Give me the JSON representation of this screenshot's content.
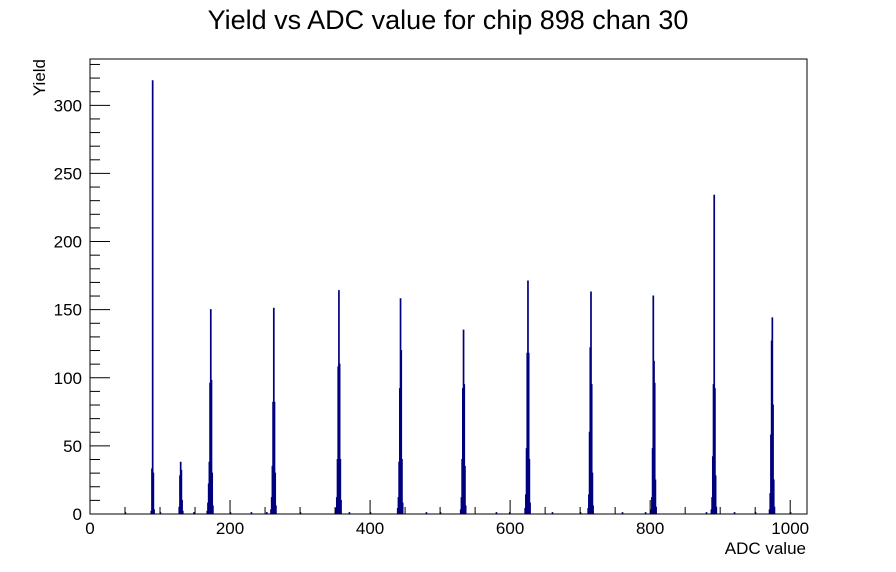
{
  "chart_data": {
    "type": "histogram",
    "title": "Yield vs ADC value for chip 898 chan 30",
    "xlabel": "ADC value",
    "ylabel": "Yield",
    "xlim": [
      0,
      1024
    ],
    "ylim": [
      0,
      334
    ],
    "x_ticks": [
      0,
      200,
      400,
      600,
      800,
      1000
    ],
    "y_ticks": [
      0,
      50,
      100,
      150,
      200,
      250,
      300
    ],
    "grid": false,
    "legend": "none",
    "line_color": "#00007f",
    "bins": [
      [
        50,
        1
      ],
      [
        87,
        2
      ],
      [
        88,
        33
      ],
      [
        89,
        318
      ],
      [
        90,
        30
      ],
      [
        91,
        3
      ],
      [
        100,
        1
      ],
      [
        127,
        5
      ],
      [
        128,
        28
      ],
      [
        129,
        38
      ],
      [
        130,
        32
      ],
      [
        131,
        10
      ],
      [
        132,
        2
      ],
      [
        148,
        1
      ],
      [
        167,
        2
      ],
      [
        168,
        8
      ],
      [
        169,
        22
      ],
      [
        170,
        38
      ],
      [
        171,
        96
      ],
      [
        172,
        150
      ],
      [
        173,
        98
      ],
      [
        174,
        30
      ],
      [
        175,
        6
      ],
      [
        200,
        1
      ],
      [
        230,
        1
      ],
      [
        252,
        1
      ],
      [
        258,
        3
      ],
      [
        259,
        12
      ],
      [
        260,
        35
      ],
      [
        261,
        82
      ],
      [
        262,
        151
      ],
      [
        263,
        82
      ],
      [
        264,
        30
      ],
      [
        265,
        6
      ],
      [
        300,
        1
      ],
      [
        350,
        1
      ],
      [
        351,
        4
      ],
      [
        352,
        12
      ],
      [
        353,
        40
      ],
      [
        354,
        108
      ],
      [
        355,
        164
      ],
      [
        356,
        110
      ],
      [
        357,
        40
      ],
      [
        358,
        10
      ],
      [
        370,
        1
      ],
      [
        400,
        1
      ],
      [
        439,
        4
      ],
      [
        440,
        12
      ],
      [
        441,
        38
      ],
      [
        442,
        92
      ],
      [
        443,
        158
      ],
      [
        444,
        120
      ],
      [
        445,
        40
      ],
      [
        446,
        8
      ],
      [
        480,
        1
      ],
      [
        500,
        1
      ],
      [
        529,
        3
      ],
      [
        530,
        12
      ],
      [
        531,
        40
      ],
      [
        532,
        92
      ],
      [
        533,
        135
      ],
      [
        534,
        95
      ],
      [
        535,
        35
      ],
      [
        536,
        6
      ],
      [
        580,
        1
      ],
      [
        599,
        1
      ],
      [
        621,
        4
      ],
      [
        622,
        14
      ],
      [
        623,
        48
      ],
      [
        624,
        118
      ],
      [
        625,
        171
      ],
      [
        626,
        118
      ],
      [
        627,
        40
      ],
      [
        628,
        8
      ],
      [
        660,
        1
      ],
      [
        700,
        1
      ],
      [
        711,
        4
      ],
      [
        712,
        14
      ],
      [
        713,
        60
      ],
      [
        714,
        122
      ],
      [
        715,
        163
      ],
      [
        716,
        95
      ],
      [
        717,
        30
      ],
      [
        718,
        6
      ],
      [
        760,
        1
      ],
      [
        793,
        1
      ],
      [
        801,
        3
      ],
      [
        802,
        12
      ],
      [
        803,
        48
      ],
      [
        804,
        160
      ],
      [
        805,
        112
      ],
      [
        806,
        96
      ],
      [
        807,
        25
      ],
      [
        808,
        5
      ],
      [
        880,
        1
      ],
      [
        887,
        3
      ],
      [
        888,
        12
      ],
      [
        889,
        42
      ],
      [
        890,
        95
      ],
      [
        891,
        234
      ],
      [
        892,
        92
      ],
      [
        893,
        28
      ],
      [
        894,
        5
      ],
      [
        920,
        1
      ],
      [
        950,
        1
      ],
      [
        970,
        3
      ],
      [
        971,
        15
      ],
      [
        972,
        58
      ],
      [
        973,
        127
      ],
      [
        974,
        144
      ],
      [
        975,
        80
      ],
      [
        976,
        25
      ],
      [
        977,
        5
      ],
      [
        1000,
        1
      ]
    ]
  }
}
